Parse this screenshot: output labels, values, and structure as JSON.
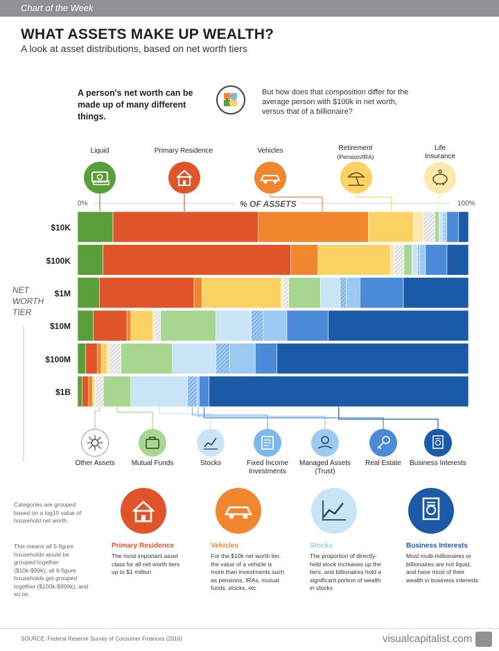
{
  "header": {
    "tag": "Chart of the Week"
  },
  "title": "WHAT ASSETS MAKE UP WEALTH?",
  "subtitle": "A look at asset distributions, based on net worth tiers",
  "intro": {
    "left": "A person's net worth can be made up of many different things.",
    "right": "But how does that composition differ for the average person with $100k in net worth, versus that of a billionaire?",
    "icon": "puzzle-icon"
  },
  "top_categories": [
    {
      "label": "Liquid",
      "sub": "",
      "icon": "cash-icon",
      "color": "#5a9e3a"
    },
    {
      "label": "Primary Residence",
      "sub": "",
      "icon": "house-icon",
      "color": "#e0542a"
    },
    {
      "label": "Vehicles",
      "sub": "",
      "icon": "car-icon",
      "color": "#f2862f"
    },
    {
      "label": "Retirement",
      "sub": "(Pension/IRA)",
      "icon": "beach-umbrella-icon",
      "color": "#fdd265"
    },
    {
      "label": "Life",
      "sub": "Insurance",
      "icon": "piggy-bank-icon",
      "color": "#fde9ad"
    }
  ],
  "bottom_categories": [
    {
      "label": "Other Assets",
      "icon": "asset-network-icon",
      "color": "#e6e6e6"
    },
    {
      "label": "Mutual Funds",
      "icon": "briefcase-icon",
      "color": "#a8d58f"
    },
    {
      "label": "Stocks",
      "icon": "stock-chart-icon",
      "color": "#c9e3f7"
    },
    {
      "label": "Fixed Income Investments",
      "icon": "bond-certificate-icon",
      "color": "#7cb7ee"
    },
    {
      "label": "Managed Assets (Trust)",
      "icon": "money-hand-icon",
      "color": "#9ccaf2"
    },
    {
      "label": "Real Estate",
      "icon": "key-icon",
      "color": "#4a8ad9"
    },
    {
      "label": "Business Interests",
      "icon": "document-seal-icon",
      "color": "#1b5aa6"
    }
  ],
  "axis": {
    "left": "0%",
    "right": "100%",
    "title": "% OF ASSETS"
  },
  "tier_label": "NET WORTH TIER",
  "chart_data": {
    "type": "bar",
    "stacked": "100%",
    "orientation": "horizontal",
    "categories": [
      "$10K",
      "$100K",
      "$1M",
      "$10M",
      "$100M",
      "$1B"
    ],
    "series": [
      {
        "name": "Liquid",
        "color": "#5a9e3a",
        "values": [
          9,
          6.5,
          5.5,
          4,
          2,
          1.2
        ]
      },
      {
        "name": "Primary Residence",
        "color": "#e0542a",
        "values": [
          37,
          48,
          24,
          8.5,
          3,
          1.6
        ]
      },
      {
        "name": "Vehicles",
        "color": "#f2862f",
        "values": [
          28,
          7,
          2,
          1,
          1,
          1
        ]
      },
      {
        "name": "Retirement (Pension/IRA)",
        "color": "#fdd265",
        "values": [
          11.5,
          18.5,
          20,
          5.5,
          1.5,
          0.5
        ]
      },
      {
        "name": "Life Insurance",
        "color": "#fde9ad",
        "values": [
          2.5,
          1,
          0.5,
          0.5,
          0.5,
          0.3
        ]
      },
      {
        "name": "Other Assets",
        "color": "#e6e6e6",
        "values": [
          3,
          2.5,
          1.5,
          1.5,
          3,
          2
        ]
      },
      {
        "name": "Mutual Funds",
        "color": "#a8d58f",
        "values": [
          1,
          2,
          8,
          14,
          13,
          7
        ]
      },
      {
        "name": "Stocks",
        "color": "#c9e3f7",
        "values": [
          1,
          1.5,
          5,
          9,
          11,
          14.5
        ]
      },
      {
        "name": "Fixed Income Investments",
        "color": "#7cb7ee",
        "values": [
          0.5,
          0.5,
          1.5,
          3,
          3.5,
          2.5
        ]
      },
      {
        "name": "Managed Assets (Trust)",
        "color": "#9ccaf2",
        "values": [
          0.5,
          1.5,
          3.5,
          6,
          6.5,
          0.5
        ]
      },
      {
        "name": "Real Estate",
        "color": "#4a8ad9",
        "values": [
          3,
          5.5,
          11,
          10.5,
          5.5,
          2.5
        ]
      },
      {
        "name": "Business Interests",
        "color": "#1b5aa6",
        "values": [
          2.5,
          5.5,
          16.5,
          35.5,
          48.5,
          66.4
        ]
      }
    ],
    "xlim": [
      0,
      100
    ]
  },
  "side_notes": [
    "Categories are grouped based on a log10 value of household net worth.",
    "This means all 5-figure households would be grouped together ($10k-$99k), all 6-figure households get grouped together ($100k-$999k), and so on."
  ],
  "cards": [
    {
      "title": "Primary Residence",
      "text": "The most important asset class for all net worth tiers up to $1 million",
      "color": "#e0542a",
      "icon": "house-icon"
    },
    {
      "title": "Vehicles",
      "text": "For the $10k net worth tier, the value of a vehicle is more than investments such as pensions, IRAs, mutual funds, stocks, etc",
      "color": "#f2862f",
      "icon": "car-icon"
    },
    {
      "title": "Stocks",
      "text": "The proportion of directly-held stock increases up the tiers, and billionaires hold a significant portion of wealth in stocks",
      "color": "#9ccaf2",
      "icon": "stock-chart-icon"
    },
    {
      "title": "Business Interests",
      "text": "Most multi-millionaires or billionaires are not liquid, and have most of their wealth in business interests",
      "color": "#1b5aa6",
      "icon": "document-seal-icon"
    }
  ],
  "footer": {
    "source": "SOURCE: Federal Reserve Survey of Consumer Finances (2016)",
    "brand": "visualcapitalist.com"
  }
}
